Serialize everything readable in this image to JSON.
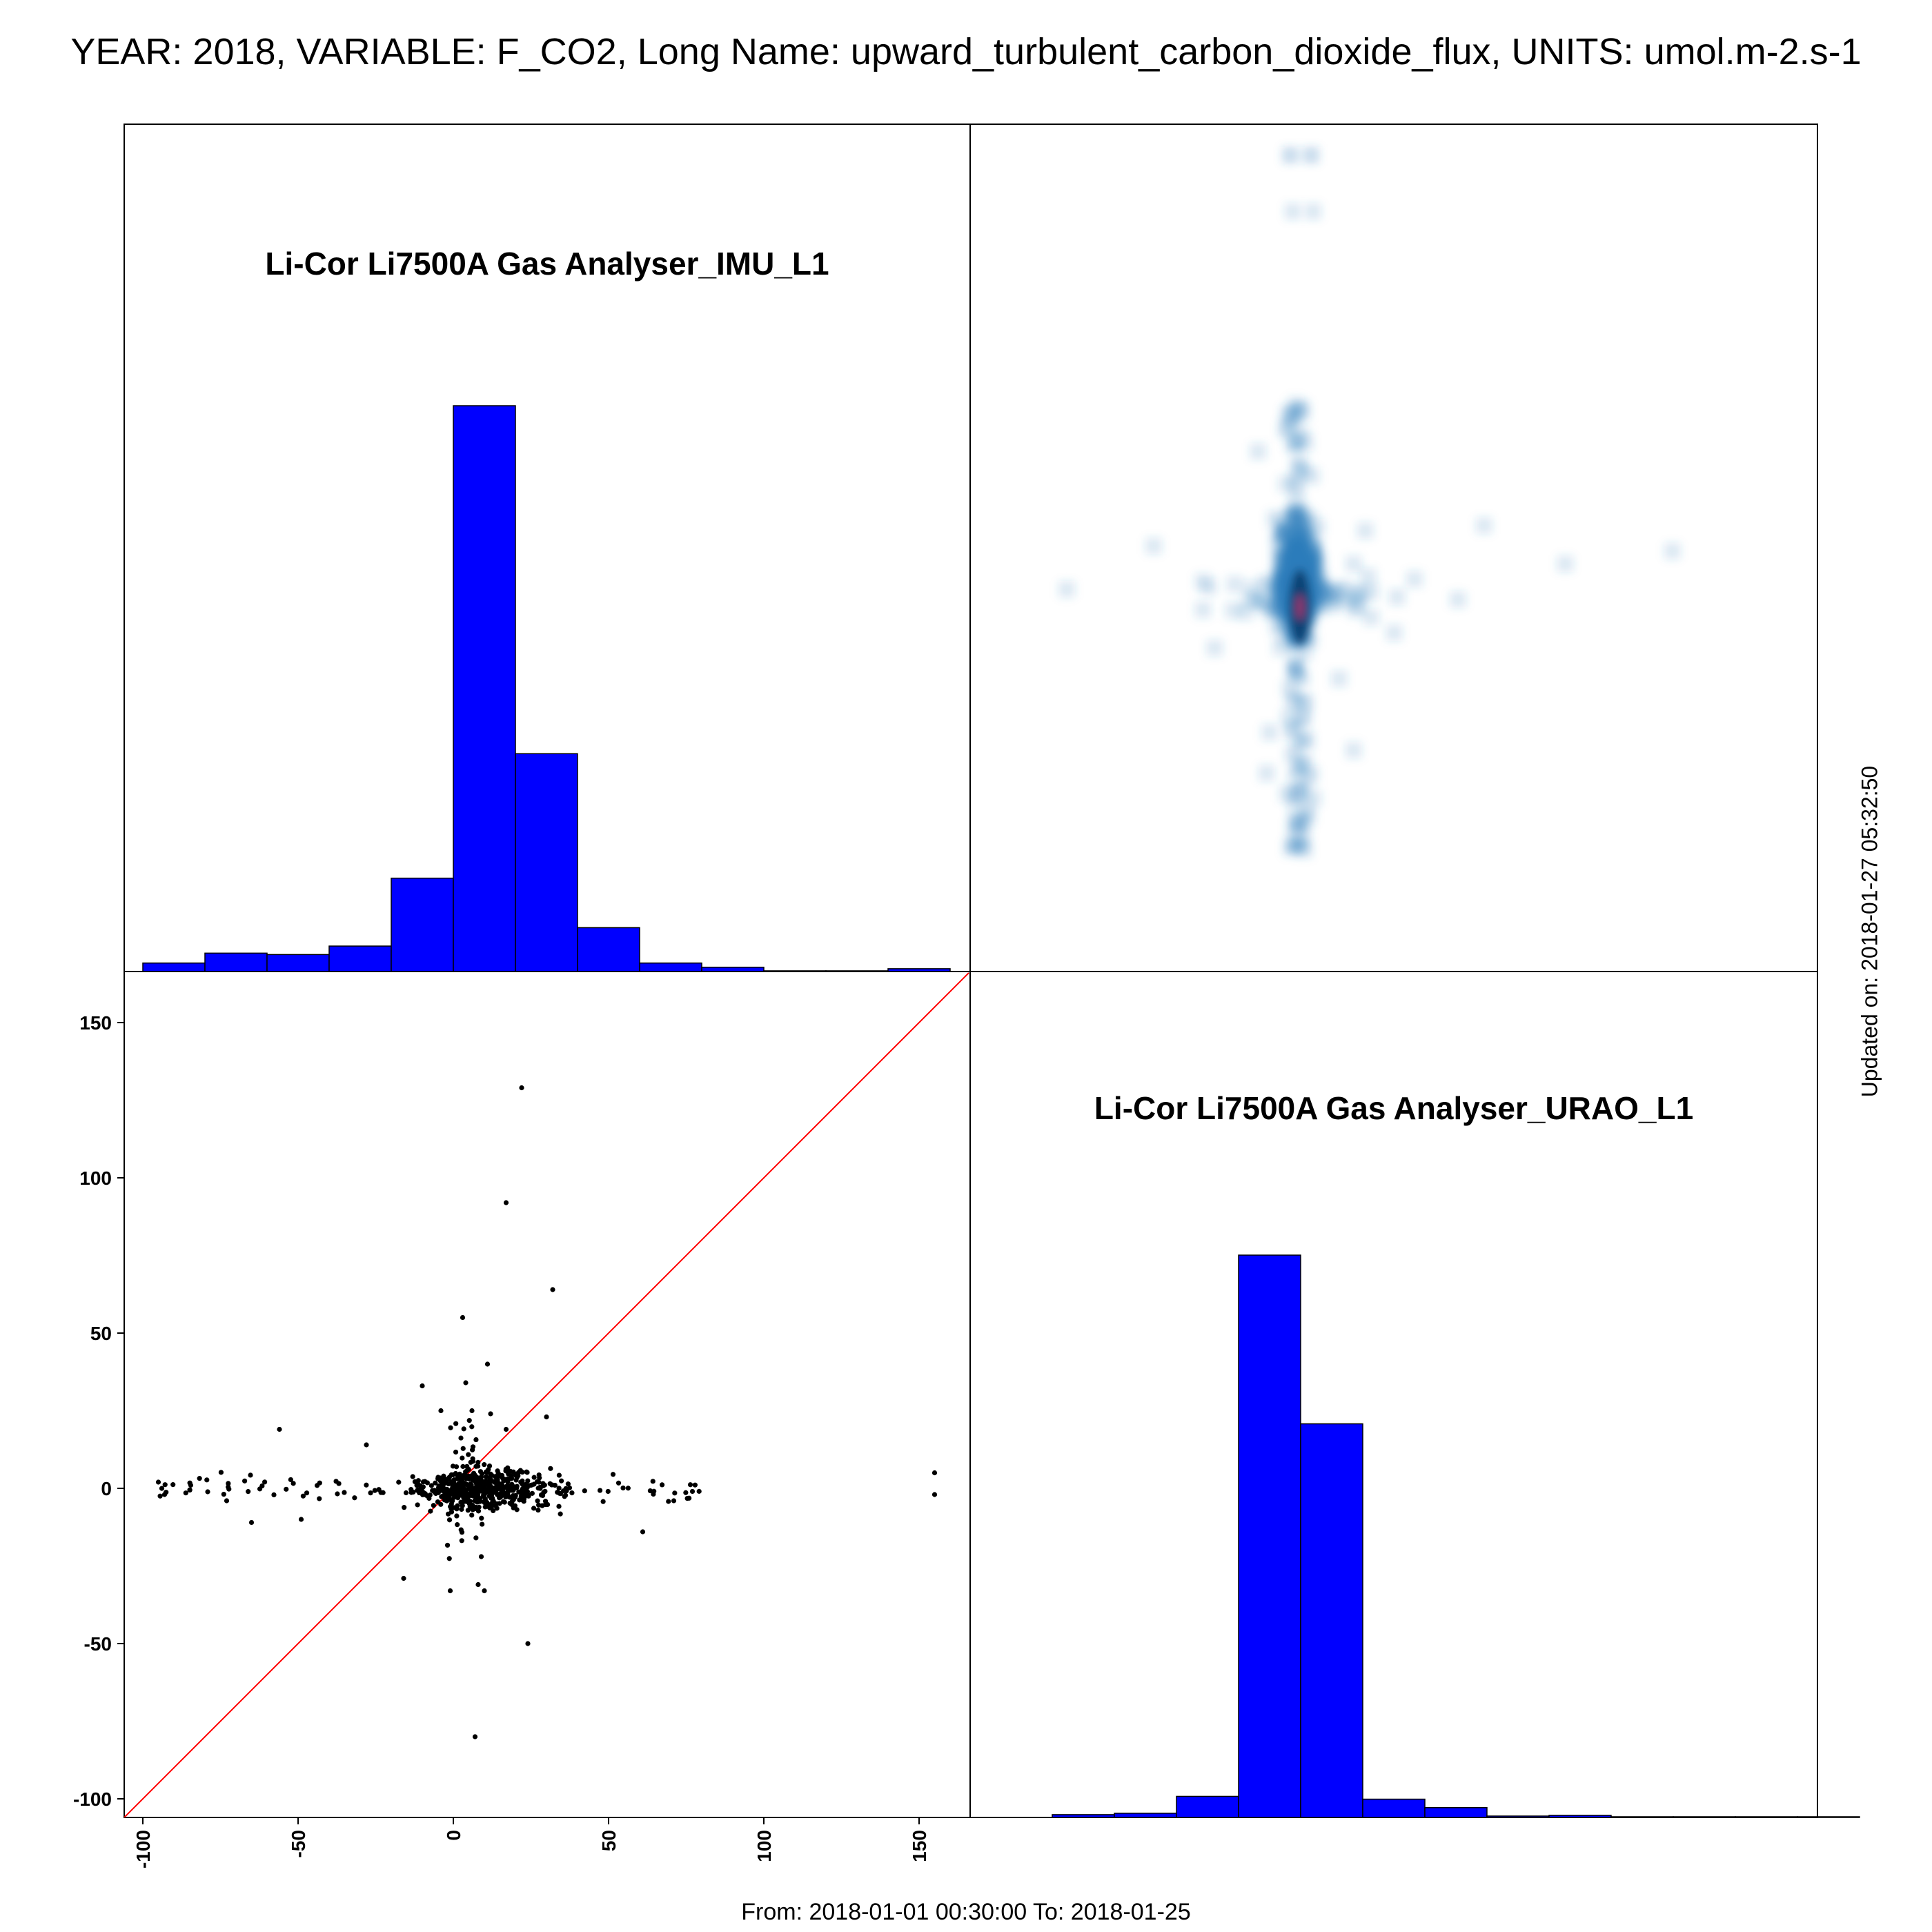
{
  "title": "YEAR: 2018, VARIABLE: F_CO2, Long Name: upward_turbulent_carbon_dioxide_flux, UNITS: umol.m-2.s-1",
  "footer": "From: 2018-01-01 00:30:00 To: 2018-01-25",
  "updated": "Updated on: 2018-01-27 05:32:50",
  "colors": {
    "hist": "#0000ff",
    "points": "#000000",
    "identity_line": "#ff0000",
    "density": "#2b7bba"
  },
  "chart_data": [
    {
      "type": "bar",
      "panel": "top-left",
      "title": "Li-Cor Li7500A Gas Analyser_IMU_L1",
      "bin_edges": [
        -100,
        -80,
        -60,
        -40,
        -20,
        0,
        20,
        40,
        60,
        80,
        100,
        120,
        140,
        160
      ],
      "values": [
        12,
        26,
        24,
        36,
        132,
        800,
        308,
        62,
        12,
        6,
        1,
        1,
        4
      ]
    },
    {
      "type": "heatmap",
      "panel": "top-right",
      "description": "2D density of URAO_L1 vs IMU_L1"
    },
    {
      "type": "scatter",
      "panel": "bottom-left",
      "x_ticks": [
        "-100",
        "-50",
        "0",
        "50",
        "100",
        "150"
      ],
      "y_ticks": [
        "150",
        "100",
        "50",
        "0",
        "-50",
        "-100"
      ],
      "xlim": [
        -106,
        166
      ],
      "ylim": [
        -106,
        166
      ],
      "identity_line": true,
      "outliers": [
        {
          "x": 22,
          "y": 129
        },
        {
          "x": 17,
          "y": 92
        },
        {
          "x": 32,
          "y": 64
        },
        {
          "x": 3,
          "y": 55
        },
        {
          "x": 11,
          "y": 40
        },
        {
          "x": -10,
          "y": 33
        },
        {
          "x": 4,
          "y": 34
        },
        {
          "x": -4,
          "y": 25
        },
        {
          "x": 6,
          "y": 25
        },
        {
          "x": 12,
          "y": 24
        },
        {
          "x": 30,
          "y": 23
        },
        {
          "x": -56,
          "y": 19
        },
        {
          "x": -28,
          "y": 14
        },
        {
          "x": 17,
          "y": 19
        },
        {
          "x": 155,
          "y": 5
        },
        {
          "x": 155,
          "y": -2
        },
        {
          "x": -95,
          "y": 2
        },
        {
          "x": -93,
          "y": -2
        },
        {
          "x": 61,
          "y": -14
        },
        {
          "x": -16,
          "y": -29
        },
        {
          "x": 8,
          "y": -31
        },
        {
          "x": -1,
          "y": -33
        },
        {
          "x": 10,
          "y": -33
        },
        {
          "x": 9,
          "y": -22
        },
        {
          "x": 24,
          "y": -50
        },
        {
          "x": 7,
          "y": -80
        },
        {
          "x": -65,
          "y": -11
        },
        {
          "x": -49,
          "y": -10
        },
        {
          "x": 77,
          "y": -1
        },
        {
          "x": 71,
          "y": -4
        },
        {
          "x": -73,
          "y": -4
        }
      ]
    },
    {
      "type": "bar",
      "panel": "bottom-right",
      "title": "Li-Cor Li7500A Gas Analyser_URAO_L1",
      "bin_edges": [
        -100,
        -80,
        -60,
        -40,
        -20,
        0,
        20,
        40,
        60,
        80,
        100,
        120,
        140,
        160
      ],
      "values": [
        4,
        6,
        30,
        800,
        560,
        26,
        14,
        2,
        3,
        1,
        1,
        1,
        1
      ]
    }
  ]
}
